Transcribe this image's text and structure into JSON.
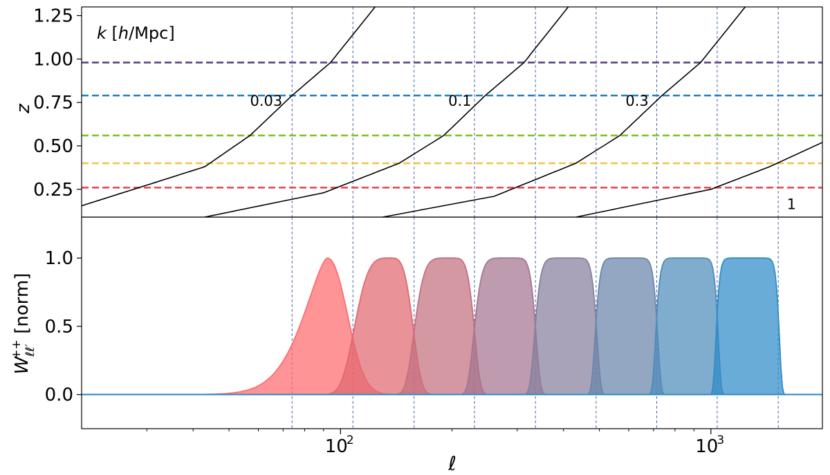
{
  "chart_data": [
    {
      "type": "line",
      "panel": "top",
      "xscale": "log",
      "xlim": [
        20,
        2000
      ],
      "ylim": [
        0.09,
        1.3
      ],
      "ylabel": "z",
      "yticks": [
        0.25,
        0.5,
        0.75,
        1.0,
        1.25
      ],
      "ytick_labels": [
        "0.25",
        "0.50",
        "0.75",
        "1.00",
        "1.25"
      ],
      "legend_title": "k [h/Mpc]",
      "redshift_lines": [
        {
          "z": 0.98,
          "color": "#5b4386"
        },
        {
          "z": 0.79,
          "color": "#1f7fc0"
        },
        {
          "z": 0.56,
          "color": "#7dc52e"
        },
        {
          "z": 0.4,
          "color": "#f2c244"
        },
        {
          "z": 0.26,
          "color": "#ec4a55"
        }
      ],
      "k_curves": [
        {
          "label": "0.03",
          "points": [
            [
              20,
              0.155
            ],
            [
              43,
              0.38
            ],
            [
              57,
              0.56
            ],
            [
              74,
              0.79
            ],
            [
              94,
              0.98
            ],
            [
              124,
              1.3
            ]
          ]
        },
        {
          "label": "0.1",
          "points": [
            [
              43,
              0.09
            ],
            [
              90,
              0.23
            ],
            [
              144,
              0.4
            ],
            [
              190,
              0.56
            ],
            [
              246,
              0.79
            ],
            [
              313,
              0.98
            ],
            [
              412,
              1.3
            ]
          ]
        },
        {
          "label": "0.3",
          "points": [
            [
              130,
              0.09
            ],
            [
              260,
              0.21
            ],
            [
              432,
              0.4
            ],
            [
              568,
              0.56
            ],
            [
              738,
              0.79
            ],
            [
              938,
              0.98
            ],
            [
              1238,
              1.3
            ]
          ]
        },
        {
          "label": "1",
          "points": [
            [
              432,
              0.09
            ],
            [
              1000,
              0.25
            ],
            [
              1440,
              0.38
            ],
            [
              2000,
              0.52
            ]
          ]
        }
      ],
      "curve_labels": [
        {
          "text": "0.03",
          "x": 63,
          "y": 0.73
        },
        {
          "text": "0.1",
          "x": 210,
          "y": 0.73
        },
        {
          "text": "0.3",
          "x": 632,
          "y": 0.73
        },
        {
          "text": "1",
          "x": 1650,
          "y": 0.135
        }
      ],
      "bin_edges": [
        74,
        108,
        158,
        230,
        336,
        490,
        714,
        1040,
        1520
      ]
    },
    {
      "type": "area",
      "panel": "bottom",
      "xscale": "log",
      "xlim": [
        20,
        2000
      ],
      "ylim": [
        -0.25,
        1.3
      ],
      "xlabel": "ℓ",
      "ylabel": "W++ ℓℓ′ [norm]",
      "yticks": [
        0.0,
        0.5,
        1.0
      ],
      "ytick_labels": [
        "0.0",
        "0.5",
        "1.0"
      ],
      "xticks": [
        100,
        1000
      ],
      "xtick_labels": [
        "10",
        "10"
      ],
      "xtick_exponents": [
        "2",
        "3"
      ],
      "bin_edges": [
        74,
        108,
        158,
        230,
        336,
        490,
        714,
        1040,
        1520
      ],
      "windows": [
        {
          "low": 74,
          "high": 108,
          "peak": 92,
          "color": "#ff6b6e"
        },
        {
          "low": 108,
          "high": 158,
          "peak": 136,
          "color": "#e06870"
        },
        {
          "low": 158,
          "high": 230,
          "peak": 197,
          "color": "#c47080"
        },
        {
          "low": 230,
          "high": 336,
          "peak": 286,
          "color": "#a5748f"
        },
        {
          "low": 336,
          "high": 490,
          "peak": 413,
          "color": "#86809e"
        },
        {
          "low": 490,
          "high": 714,
          "peak": 595,
          "color": "#6a85ab"
        },
        {
          "low": 714,
          "high": 1040,
          "peak": 870,
          "color": "#4f8cbb"
        },
        {
          "low": 1040,
          "high": 1520,
          "peak": 1260,
          "color": "#2f8cc9"
        }
      ]
    }
  ]
}
